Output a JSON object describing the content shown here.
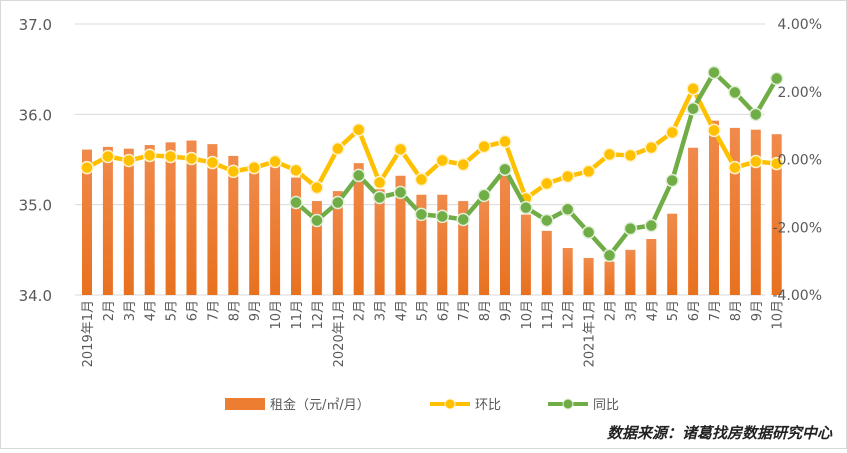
{
  "chart_data": {
    "type": "bar+line",
    "categories": [
      "2019年1月",
      "2月",
      "3月",
      "4月",
      "5月",
      "6月",
      "7月",
      "8月",
      "9月",
      "10月",
      "11月",
      "12月",
      "2020年1月",
      "2月",
      "3月",
      "4月",
      "5月",
      "6月",
      "7月",
      "8月",
      "9月",
      "10月",
      "11月",
      "12月",
      "2021年1月",
      "2月",
      "3月",
      "4月",
      "5月",
      "6月",
      "7月",
      "8月",
      "9月",
      "10月"
    ],
    "left_axis": {
      "ylim": [
        34.0,
        37.0
      ],
      "ticks": [
        "34.0",
        "35.0",
        "36.0",
        "37.0"
      ]
    },
    "right_axis": {
      "ylim": [
        -4,
        4
      ],
      "ticks": [
        "-4.00%",
        "-2.00%",
        "0.00%",
        "2.00%",
        "4.00%"
      ]
    },
    "series": [
      {
        "name": "租金（元/㎡/月）",
        "type": "bar",
        "axis": "left",
        "color": "#ED7D31",
        "values": [
          35.61,
          35.64,
          35.62,
          35.66,
          35.69,
          35.71,
          35.67,
          35.54,
          35.4,
          35.45,
          35.3,
          35.04,
          35.15,
          35.46,
          35.17,
          35.32,
          35.11,
          35.11,
          35.04,
          35.05,
          35.33,
          34.89,
          34.71,
          34.52,
          34.41,
          34.37,
          34.5,
          34.62,
          34.9,
          35.63,
          35.93,
          35.85,
          35.83,
          35.78
        ]
      },
      {
        "name": "环比",
        "type": "line",
        "axis": "right",
        "color": "#FFC000",
        "values": [
          -0.24,
          0.09,
          -0.03,
          0.12,
          0.09,
          0.03,
          -0.09,
          -0.35,
          -0.24,
          -0.06,
          -0.32,
          -0.83,
          0.32,
          0.88,
          -0.68,
          0.3,
          -0.59,
          -0.03,
          -0.15,
          0.38,
          0.53,
          -1.15,
          -0.71,
          -0.5,
          -0.35,
          0.15,
          0.12,
          0.35,
          0.8,
          2.09,
          0.86,
          -0.24,
          -0.06,
          -0.12
        ]
      },
      {
        "name": "同比",
        "type": "line",
        "axis": "right",
        "color": "#70AD47",
        "values": [
          null,
          null,
          null,
          null,
          null,
          null,
          null,
          null,
          null,
          null,
          -1.27,
          -1.8,
          -1.27,
          -0.47,
          -1.12,
          -0.97,
          -1.62,
          -1.68,
          -1.77,
          -1.06,
          -0.29,
          -1.42,
          -1.8,
          -1.47,
          -2.15,
          -2.83,
          -2.04,
          -1.95,
          -0.62,
          1.5,
          2.57,
          1.98,
          1.33,
          2.39
        ]
      }
    ],
    "grid": true,
    "legend": "bottom-center"
  },
  "source": "数据来源：诸葛找房数据研究中心"
}
